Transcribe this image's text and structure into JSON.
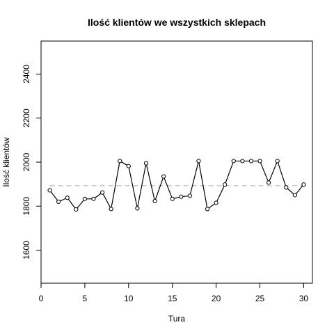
{
  "chart_data": {
    "type": "line",
    "title": "Ilość klientów we wszystkich sklepach",
    "xlabel": "Tura",
    "ylabel": "Ilość klientów",
    "xlim": [
      0,
      31
    ],
    "ylim": [
      1450,
      2550
    ],
    "xticks": [
      "0",
      "5",
      "10",
      "15",
      "20",
      "25",
      "30"
    ],
    "yticks": [
      "1600",
      "1800",
      "2000",
      "2200",
      "2400"
    ],
    "grid": false,
    "legend": "none",
    "reference_line": {
      "y": 1893,
      "style": "dashed",
      "color": "#c0c0c0"
    },
    "series": [
      {
        "color": "#000000",
        "marker": "open-circle",
        "x": [
          1,
          2,
          3,
          4,
          5,
          6,
          7,
          8,
          9,
          10,
          11,
          12,
          13,
          14,
          15,
          16,
          17,
          18,
          19,
          20,
          21,
          22,
          23,
          24,
          25,
          26,
          27,
          28,
          29,
          30
        ],
        "values": [
          1872,
          1820,
          1838,
          1785,
          1833,
          1833,
          1862,
          1787,
          2005,
          1982,
          1790,
          1995,
          1823,
          1935,
          1833,
          1843,
          1847,
          2005,
          1787,
          1815,
          1898,
          2005,
          2005,
          2005,
          2005,
          1907,
          2005,
          1885,
          1850,
          1898
        ]
      }
    ]
  }
}
